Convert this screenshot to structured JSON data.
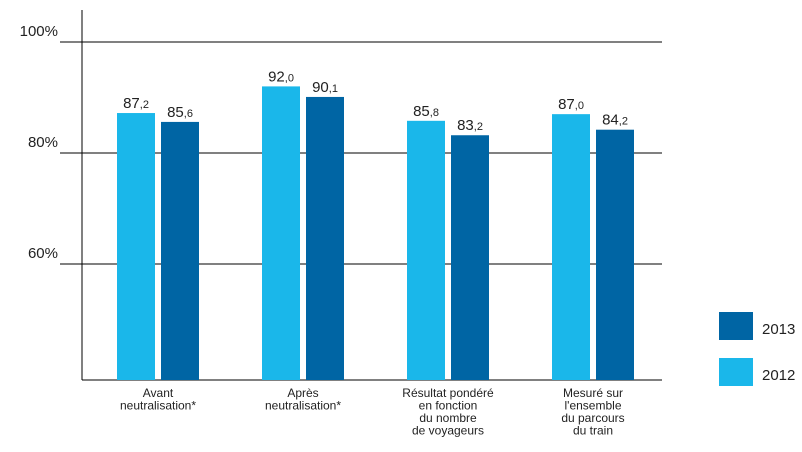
{
  "chart_data": {
    "type": "bar",
    "categories": [
      [
        "Avant",
        "neutralisation*"
      ],
      [
        "Après",
        "neutralisation*"
      ],
      [
        "Résultat pondéré",
        "en fonction",
        "du nombre",
        "de voyageurs"
      ],
      [
        "Mesuré sur",
        "l'ensemble",
        "du parcours",
        "du train"
      ]
    ],
    "series": [
      {
        "name": "2012",
        "color": "#1ab7ea",
        "values": [
          87.2,
          92.0,
          85.8,
          87.0
        ],
        "labels": [
          [
            "87",
            "2"
          ],
          [
            "92",
            "0"
          ],
          [
            "85",
            "8"
          ],
          [
            "87",
            "0"
          ]
        ]
      },
      {
        "name": "2013",
        "color": "#0065a4",
        "values": [
          85.6,
          90.1,
          83.2,
          84.2
        ],
        "labels": [
          [
            "85",
            "6"
          ],
          [
            "90",
            "1"
          ],
          [
            "83",
            "2"
          ],
          [
            "84",
            "2"
          ]
        ]
      }
    ],
    "yticks": [
      {
        "value": 60,
        "label": "60%"
      },
      {
        "value": 80,
        "label": "80%"
      },
      {
        "value": 100,
        "label": "100%"
      }
    ],
    "ylim": [
      42,
      104
    ],
    "grid": true,
    "legend_position": "bottom-right"
  }
}
